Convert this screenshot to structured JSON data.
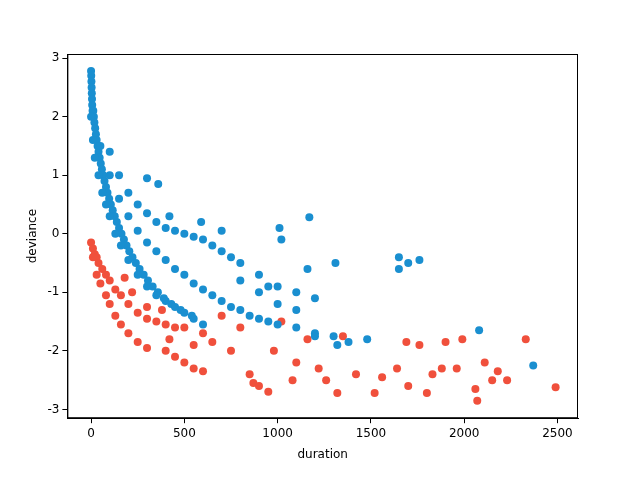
{
  "chart_data": {
    "type": "scatter",
    "x_label": "duration",
    "y_label": "deviance",
    "xlim": [
      -127,
      2610
    ],
    "ylim": [
      -3.15,
      3.07
    ],
    "xticks": [
      0,
      500,
      1000,
      1500,
      2000,
      2500
    ],
    "yticks": [
      -3,
      -2,
      -1,
      0,
      1,
      2,
      3
    ],
    "grid": false,
    "series": [
      {
        "color": "#1a8fd0",
        "marker": "o",
        "x": [
          0,
          1,
          2,
          3,
          4,
          5,
          6,
          8,
          12,
          15,
          18,
          22,
          26,
          30,
          35,
          40,
          46,
          52,
          58,
          65,
          72,
          80,
          88,
          97,
          106,
          116,
          127,
          138,
          150,
          163,
          176,
          190,
          205,
          222,
          240,
          260,
          282,
          305,
          330,
          358,
          390,
          430,
          480,
          540,
          0,
          10,
          20,
          40,
          60,
          80,
          100,
          130,
          160,
          200,
          250,
          300,
          350,
          400,
          450,
          500,
          550,
          600,
          50,
          100,
          150,
          200,
          250,
          300,
          350,
          400,
          450,
          500,
          550,
          600,
          650,
          700,
          750,
          800,
          850,
          900,
          950,
          1000,
          1100,
          1200,
          1300,
          100,
          150,
          200,
          250,
          300,
          350,
          400,
          450,
          500,
          550,
          600,
          650,
          700,
          750,
          800,
          900,
          1000,
          1100,
          1200,
          300,
          360,
          420,
          590,
          700,
          1010,
          1020,
          1170,
          1160,
          1310,
          1650,
          1650,
          1700,
          1760,
          1480,
          1320,
          1380,
          1200,
          2080,
          2370,
          1100,
          900,
          800,
          1000,
          950
        ],
        "values": [
          2.78,
          2.7,
          2.6,
          2.5,
          2.4,
          2.3,
          2.2,
          2.1,
          2.1,
          2.0,
          1.9,
          1.8,
          1.7,
          1.6,
          1.5,
          1.4,
          1.3,
          1.2,
          1.1,
          1.0,
          0.9,
          0.8,
          0.7,
          0.6,
          0.5,
          0.4,
          0.3,
          0.2,
          0.1,
          0.0,
          -0.1,
          -0.2,
          -0.3,
          -0.4,
          -0.5,
          -0.6,
          -0.7,
          -0.8,
          -0.9,
          -1.0,
          -1.1,
          -1.2,
          -1.3,
          -1.4,
          2.0,
          1.6,
          1.3,
          1.0,
          0.7,
          0.5,
          0.3,
          0.0,
          -0.2,
          -0.45,
          -0.7,
          -0.9,
          -1.05,
          -1.15,
          -1.25,
          -1.35,
          -1.45,
          -1.55,
          1.5,
          1.0,
          0.6,
          0.3,
          0.05,
          -0.15,
          -0.3,
          -0.45,
          -0.6,
          -0.7,
          -0.85,
          -0.95,
          -1.05,
          -1.15,
          -1.25,
          -1.3,
          -1.4,
          -1.45,
          -1.5,
          -1.55,
          -1.6,
          -1.7,
          -1.75,
          1.4,
          1.0,
          0.7,
          0.5,
          0.35,
          0.2,
          0.1,
          0.05,
          0.0,
          -0.05,
          -0.1,
          -0.2,
          -0.3,
          -0.4,
          -0.5,
          -0.7,
          -0.9,
          -1.0,
          -1.1,
          0.95,
          0.85,
          0.3,
          0.2,
          0.05,
          0.1,
          -0.1,
          0.28,
          -0.6,
          -0.5,
          -0.4,
          -0.6,
          -0.5,
          -0.45,
          -1.8,
          -1.9,
          -1.85,
          -1.75,
          -1.65,
          -2.25,
          -1.3,
          -1.0,
          -0.8,
          -1.2,
          -0.9
        ]
      },
      {
        "color": "#f0503c",
        "marker": "o",
        "x": [
          0,
          10,
          20,
          30,
          40,
          60,
          80,
          100,
          130,
          160,
          200,
          250,
          300,
          350,
          400,
          450,
          10,
          30,
          50,
          80,
          100,
          130,
          160,
          200,
          250,
          300,
          400,
          450,
          500,
          550,
          600,
          180,
          220,
          300,
          380,
          420,
          500,
          550,
          600,
          650,
          700,
          750,
          800,
          850,
          870,
          900,
          950,
          980,
          1020,
          1080,
          1100,
          1160,
          1220,
          1260,
          1320,
          1350,
          1420,
          1520,
          1560,
          1640,
          1690,
          1700,
          1760,
          1800,
          1830,
          1880,
          1900,
          1960,
          1990,
          2060,
          2070,
          2110,
          2150,
          2180,
          2230,
          2330,
          2490
        ],
        "values": [
          -0.15,
          -0.25,
          -0.35,
          -0.4,
          -0.5,
          -0.6,
          -0.7,
          -0.8,
          -0.95,
          -1.05,
          -1.2,
          -1.35,
          -1.45,
          -1.5,
          -1.55,
          -1.6,
          -0.4,
          -0.7,
          -0.85,
          -1.05,
          -1.2,
          -1.4,
          -1.55,
          -1.7,
          -1.85,
          -1.95,
          -2.0,
          -2.1,
          -2.2,
          -2.3,
          -2.35,
          -0.75,
          -1.0,
          -1.25,
          -1.3,
          -1.8,
          -1.6,
          -1.9,
          -1.7,
          -1.85,
          -1.4,
          -2.0,
          -1.6,
          -2.4,
          -2.55,
          -2.6,
          -2.7,
          -2.0,
          -1.5,
          -2.5,
          -2.2,
          -1.8,
          -2.3,
          -2.5,
          -2.72,
          -1.75,
          -2.4,
          -2.72,
          -2.45,
          -2.3,
          -1.85,
          -2.6,
          -1.9,
          -2.72,
          -2.4,
          -2.3,
          -1.85,
          -2.3,
          -1.8,
          -2.65,
          -2.85,
          -2.2,
          -2.5,
          -2.35,
          -2.5,
          -1.8,
          -2.62
        ]
      }
    ]
  }
}
